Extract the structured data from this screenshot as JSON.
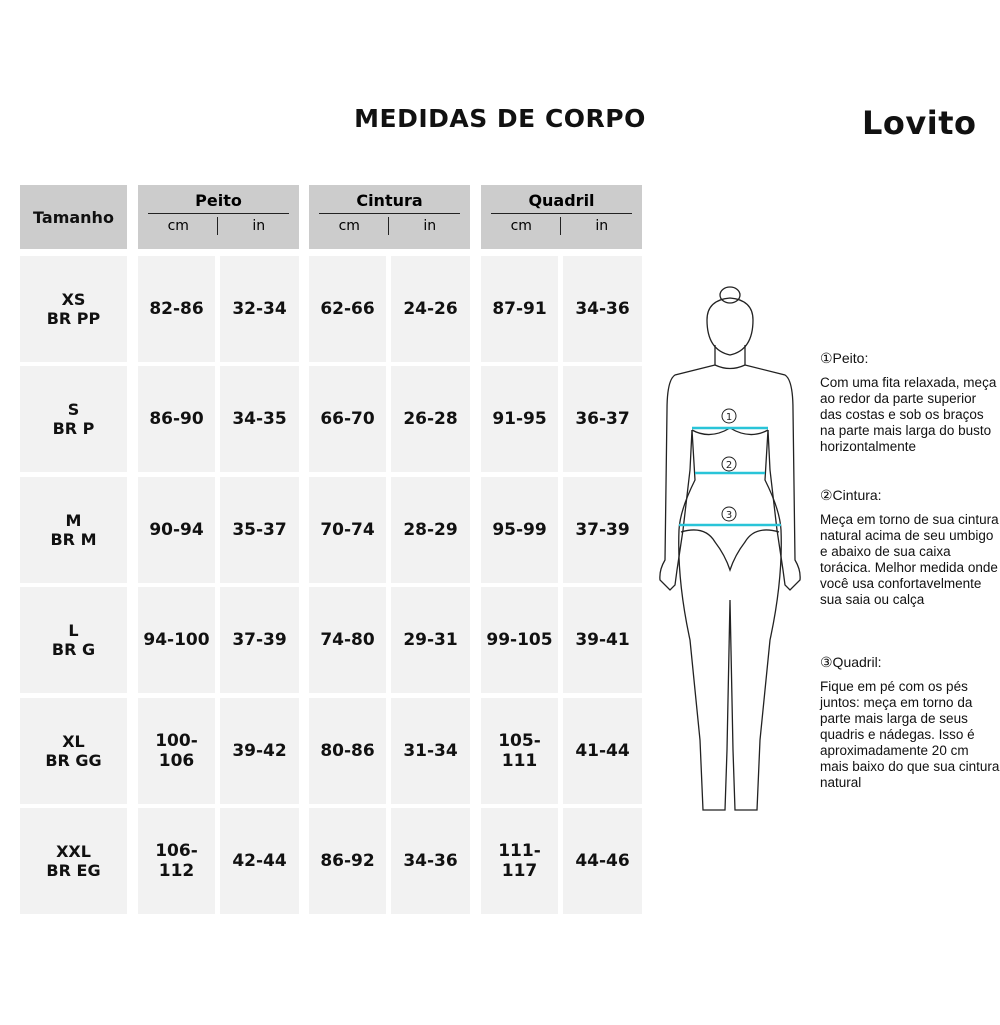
{
  "title": "MEDIDAS DE CORPO",
  "brand": "Lovito",
  "table": {
    "size_header": "Tamanho",
    "groups": [
      {
        "label": "Peito",
        "units": [
          "cm",
          "in"
        ]
      },
      {
        "label": "Cintura",
        "units": [
          "cm",
          "in"
        ]
      },
      {
        "label": "Quadril",
        "units": [
          "cm",
          "in"
        ]
      }
    ],
    "rows": [
      {
        "size": "XS",
        "br": "BR PP",
        "values": [
          "82-86",
          "32-34",
          "62-66",
          "24-26",
          "87-91",
          "34-36"
        ]
      },
      {
        "size": "S",
        "br": "BR P",
        "values": [
          "86-90",
          "34-35",
          "66-70",
          "26-28",
          "91-95",
          "36-37"
        ]
      },
      {
        "size": "M",
        "br": "BR M",
        "values": [
          "90-94",
          "35-37",
          "70-74",
          "28-29",
          "95-99",
          "37-39"
        ]
      },
      {
        "size": "L",
        "br": "BR G",
        "values": [
          "94-100",
          "37-39",
          "74-80",
          "29-31",
          "99-105",
          "39-41"
        ]
      },
      {
        "size": "XL",
        "br": "BR GG",
        "values": [
          "100-106",
          "39-42",
          "80-86",
          "31-34",
          "105-111",
          "41-44"
        ]
      },
      {
        "size": "XXL",
        "br": "BR EG",
        "values": [
          "106-112",
          "42-44",
          "86-92",
          "34-36",
          "111-117",
          "44-46"
        ]
      }
    ]
  },
  "figure": {
    "markers": [
      "1",
      "2",
      "3"
    ],
    "line_color": "#29c4d8"
  },
  "instructions": [
    {
      "heading": "①Peito:",
      "text": "Com uma fita relaxada, meça ao redor da parte superior das costas e sob os braços na parte mais larga do busto horizontalmente"
    },
    {
      "heading": "②Cintura:",
      "text": "Meça em torno de sua cintura natural acima de seu umbigo e abaixo de sua caixa torácica. Melhor medida onde você usa confortavelmente sua saia ou calça"
    },
    {
      "heading": "③Quadril:",
      "text": "Fique em pé com os pés juntos: meça em torno da parte mais larga de seus quadris e nádegas. Isso é aproximadamente 20 cm mais baixo do que sua cintura natural"
    }
  ]
}
